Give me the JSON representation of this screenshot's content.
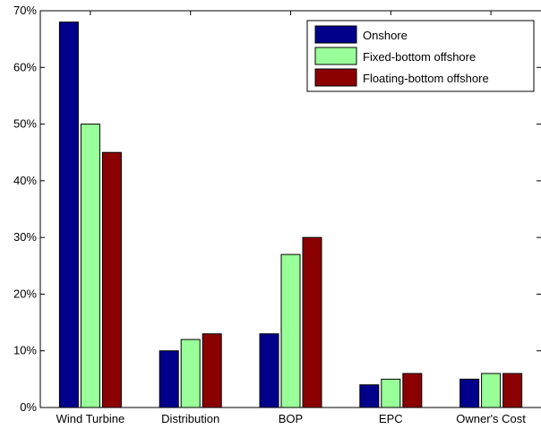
{
  "chart_data": {
    "type": "bar",
    "title": "",
    "xlabel": "",
    "ylabel": "",
    "categories": [
      "Wind Turbine",
      "Distribution",
      "BOP",
      "EPC",
      "Owner's Cost"
    ],
    "series": [
      {
        "name": "Onshore",
        "values": [
          68,
          10,
          13,
          4,
          5
        ],
        "color": "#00008b"
      },
      {
        "name": "Fixed-bottom offshore",
        "values": [
          50,
          12,
          27,
          5,
          6
        ],
        "color": "#99ff99"
      },
      {
        "name": "Floating-bottom offshore",
        "values": [
          45,
          13,
          30,
          6,
          6
        ],
        "color": "#8b0000"
      }
    ],
    "ylim": [
      0,
      70
    ],
    "yticks": [
      0,
      10,
      20,
      30,
      40,
      50,
      60,
      70
    ],
    "ytick_labels": [
      "0%",
      "10%",
      "20%",
      "30%",
      "40%",
      "50%",
      "60%",
      "70%"
    ],
    "grid": false,
    "legend_position": "top-right"
  }
}
